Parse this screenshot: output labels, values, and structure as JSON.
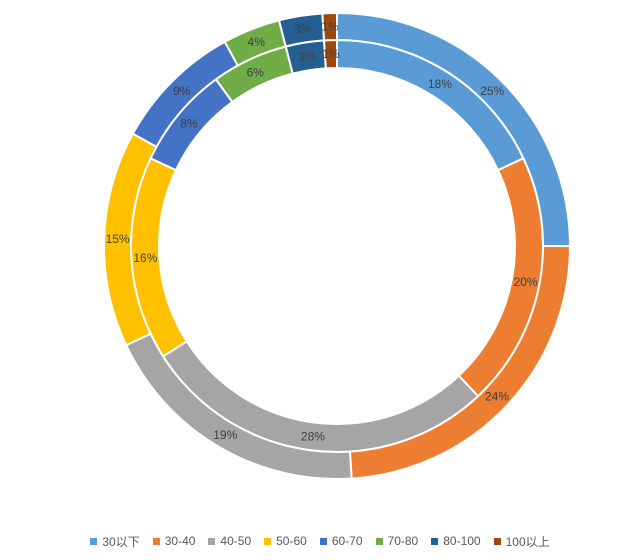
{
  "chart_data": {
    "type": "doughnut",
    "title": "",
    "categories": [
      "30以下",
      "30-40",
      "40-50",
      "50-60",
      "60-70",
      "70-80",
      "80-100",
      "100以上"
    ],
    "colors": [
      "#5B9BD5",
      "#ED7D31",
      "#A5A5A5",
      "#FFC000",
      "#4472C4",
      "#70AD47",
      "#255E91",
      "#9E480E"
    ],
    "series": [
      {
        "values": [
          18,
          20,
          28,
          16,
          8,
          6,
          3,
          1
        ],
        "labels": [
          "18%",
          "20%",
          "28%",
          "16%",
          "8%",
          "6%",
          "3%",
          "1%"
        ]
      },
      {
        "values": [
          25,
          24,
          19,
          15,
          9,
          4,
          3,
          1
        ],
        "labels": [
          "25%",
          "24%",
          "19%",
          "15%",
          "9%",
          "4%",
          "3%",
          "1%"
        ]
      }
    ],
    "legend_position": "bottom"
  }
}
